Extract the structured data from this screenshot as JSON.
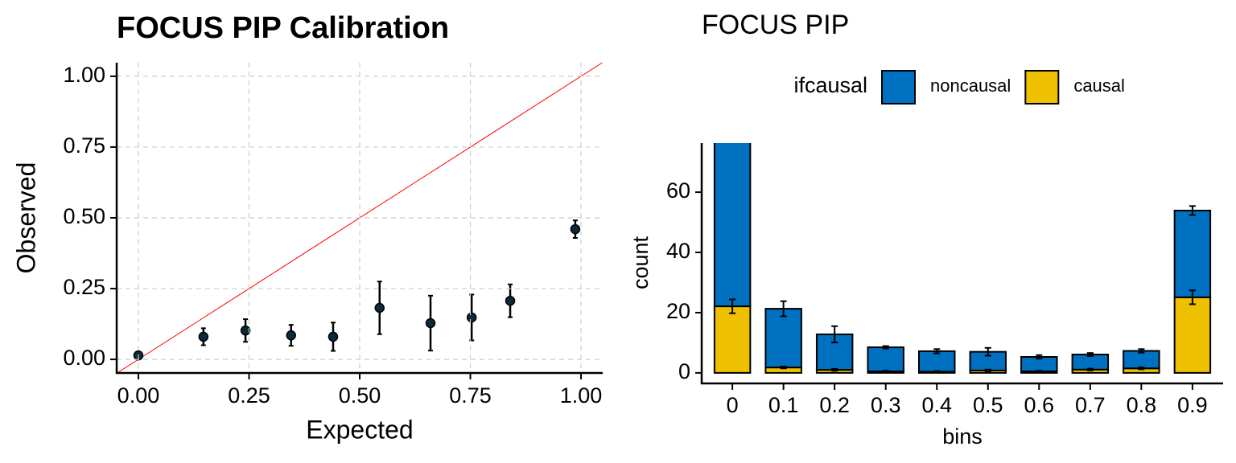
{
  "chart_data": [
    {
      "type": "scatter",
      "title": "FOCUS PIP Calibration",
      "x_label": "Expected",
      "y_label": "Observed",
      "x": [
        0.0,
        0.147,
        0.242,
        0.345,
        0.44,
        0.545,
        0.66,
        0.753,
        0.84,
        0.987
      ],
      "values": [
        0.014,
        0.08,
        0.102,
        0.085,
        0.08,
        0.182,
        0.128,
        0.148,
        0.207,
        0.46
      ],
      "errors": [
        0.004,
        0.03,
        0.04,
        0.037,
        0.05,
        0.093,
        0.097,
        0.081,
        0.058,
        0.031
      ],
      "color": "#0b2a3c",
      "identity_line_color": "#ff0000",
      "xlim": [
        -0.049,
        1.049
      ],
      "ylim": [
        -0.048,
        1.048
      ],
      "xticks": [
        {
          "value": 0,
          "label": "0.00"
        },
        {
          "value": 0.25,
          "label": "0.25"
        },
        {
          "value": 0.5,
          "label": "0.50"
        },
        {
          "value": 0.75,
          "label": "0.75"
        },
        {
          "value": 1,
          "label": "1.00"
        }
      ],
      "yticks": [
        {
          "value": 0,
          "label": "0.00"
        },
        {
          "value": 0.25,
          "label": "0.25"
        },
        {
          "value": 0.5,
          "label": "0.50"
        },
        {
          "value": 0.75,
          "label": "0.75"
        },
        {
          "value": 1,
          "label": "1.00"
        }
      ],
      "grid": true
    },
    {
      "type": "bar",
      "stacked": true,
      "title": "FOCUS PIP",
      "x_label": "bins",
      "y_label": "count",
      "legend_title": "ifcausal",
      "legend_position": "top",
      "categories": [
        "0",
        "0.1",
        "0.2",
        "0.3",
        "0.4",
        "0.5",
        "0.6",
        "0.7",
        "0.8",
        "0.9"
      ],
      "series": [
        {
          "name": "noncausal",
          "color": "#0070c0",
          "values": [
            58,
            19.5,
            11.8,
            8.0,
            6.8,
            6.2,
            4.8,
            5.0,
            5.8,
            28.8
          ],
          "errors": [
            3,
            2.5,
            2.7,
            0.4,
            0.7,
            1.3,
            0.6,
            0.5,
            0.6,
            1.5
          ]
        },
        {
          "name": "causal",
          "color": "#efc000",
          "values": [
            22.1,
            1.8,
            1.0,
            0.5,
            0.4,
            0.8,
            0.5,
            1.1,
            1.5,
            25.1
          ],
          "errors": [
            2.3,
            0.3,
            0.3,
            0.2,
            0.2,
            0.3,
            0.2,
            0.3,
            0.3,
            2.3
          ]
        }
      ],
      "ylim": [
        -3.5,
        76.3
      ],
      "yticks": [
        0,
        20,
        40,
        60
      ],
      "grid": false
    }
  ]
}
